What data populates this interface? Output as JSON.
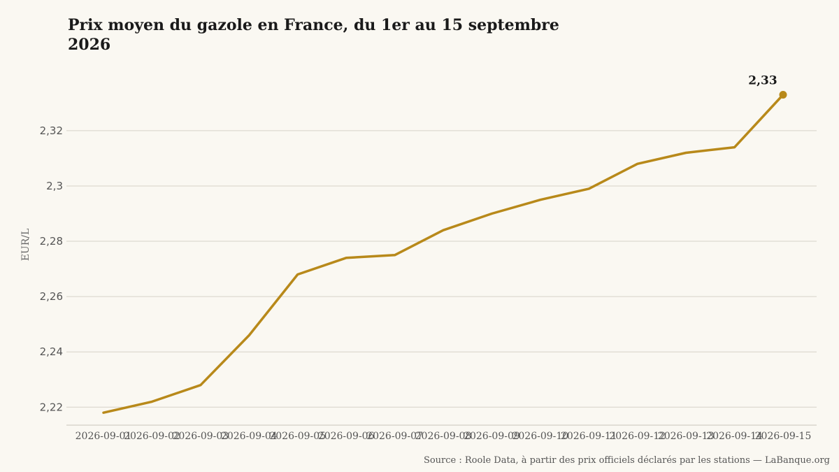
{
  "chart_data": {
    "type": "line",
    "title": "Prix moyen du gazole en France, du 1er au 15 septembre 2026",
    "ylabel": "EUR/L",
    "xlabel": "",
    "x": [
      "2026-09-01",
      "2026-09-02",
      "2026-09-03",
      "2026-09-04",
      "2026-09-05",
      "2026-09-06",
      "2026-09-07",
      "2026-09-08",
      "2026-09-09",
      "2026-09-10",
      "2026-09-11",
      "2026-09-12",
      "2026-09-13",
      "2026-09-14",
      "2026-09-15"
    ],
    "series": [
      {
        "name": "",
        "color": "#b8891a",
        "values": [
          2.218,
          2.222,
          2.228,
          2.246,
          2.268,
          2.274,
          2.275,
          2.284,
          2.29,
          2.295,
          2.299,
          2.308,
          2.312,
          2.314,
          2.333
        ]
      }
    ],
    "yticks": [
      2.22,
      2.24,
      2.26,
      2.28,
      2.3,
      2.32
    ],
    "ytick_labels": [
      "2,22",
      "2,24",
      "2,26",
      "2,28",
      "2,3",
      "2,32"
    ],
    "ylim": [
      2.2135,
      2.345
    ],
    "grid": "horizontal",
    "end_label": "2,33",
    "source": "Source : Roole Data, à partir des prix officiels déclarés par les stations — LaBanque.org"
  }
}
